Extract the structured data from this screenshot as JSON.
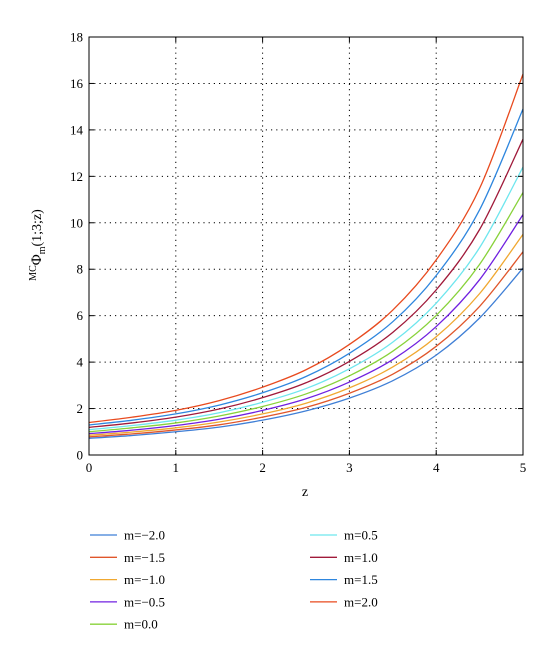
{
  "chart_data": {
    "type": "line",
    "title": "",
    "xlabel": "z",
    "ylabel_main": "Φ",
    "ylabel_pre_sup": "MC",
    "ylabel_sub": "m",
    "ylabel_args": "(1;3;z)",
    "xlim": [
      0,
      5
    ],
    "ylim": [
      0,
      18
    ],
    "xticks": [
      "0",
      "1",
      "2",
      "3",
      "4",
      "5"
    ],
    "yticks": [
      "0",
      "2",
      "4",
      "6",
      "8",
      "10",
      "12",
      "14",
      "16",
      "18"
    ],
    "grid": true,
    "legend_position": "bottom",
    "x": [
      0,
      0.5,
      1,
      1.5,
      2,
      2.5,
      3,
      3.5,
      4,
      4.5,
      5
    ],
    "series": [
      {
        "name": "m=−2.0",
        "color": "#3f7fd6",
        "values": [
          0.72,
          0.84,
          1.0,
          1.2,
          1.5,
          1.9,
          2.45,
          3.2,
          4.3,
          5.9,
          8.05
        ]
      },
      {
        "name": "m=−1.5",
        "color": "#e0562b",
        "values": [
          0.78,
          0.91,
          1.08,
          1.3,
          1.63,
          2.05,
          2.66,
          3.48,
          4.68,
          6.4,
          8.75
        ]
      },
      {
        "name": "m=−1.0",
        "color": "#f0a830",
        "values": [
          0.85,
          0.99,
          1.17,
          1.42,
          1.77,
          2.23,
          2.89,
          3.79,
          5.09,
          6.95,
          9.5
        ]
      },
      {
        "name": "m=−0.5",
        "color": "#7020e0",
        "values": [
          0.92,
          1.07,
          1.27,
          1.54,
          1.92,
          2.42,
          3.14,
          4.11,
          5.53,
          7.55,
          10.35
        ]
      },
      {
        "name": "m=0.0",
        "color": "#88d23a",
        "values": [
          1.0,
          1.17,
          1.38,
          1.68,
          2.09,
          2.63,
          3.41,
          4.47,
          6.01,
          8.21,
          11.3
        ]
      },
      {
        "name": "m=0.5",
        "color": "#6ee6ee",
        "values": [
          1.09,
          1.27,
          1.5,
          1.82,
          2.27,
          2.86,
          3.71,
          4.86,
          6.54,
          8.93,
          12.4
        ]
      },
      {
        "name": "m=1.0",
        "color": "#a01a3a",
        "values": [
          1.19,
          1.38,
          1.63,
          1.98,
          2.47,
          3.11,
          4.03,
          5.28,
          7.11,
          9.71,
          13.6
        ]
      },
      {
        "name": "m=1.5",
        "color": "#2e86de",
        "values": [
          1.29,
          1.5,
          1.77,
          2.15,
          2.68,
          3.38,
          4.38,
          5.74,
          7.73,
          10.56,
          14.9
        ]
      },
      {
        "name": "m=2.0",
        "color": "#e84a1e",
        "values": [
          1.4,
          1.63,
          1.92,
          2.34,
          2.92,
          3.67,
          4.76,
          6.24,
          8.4,
          11.48,
          16.4
        ]
      }
    ]
  }
}
